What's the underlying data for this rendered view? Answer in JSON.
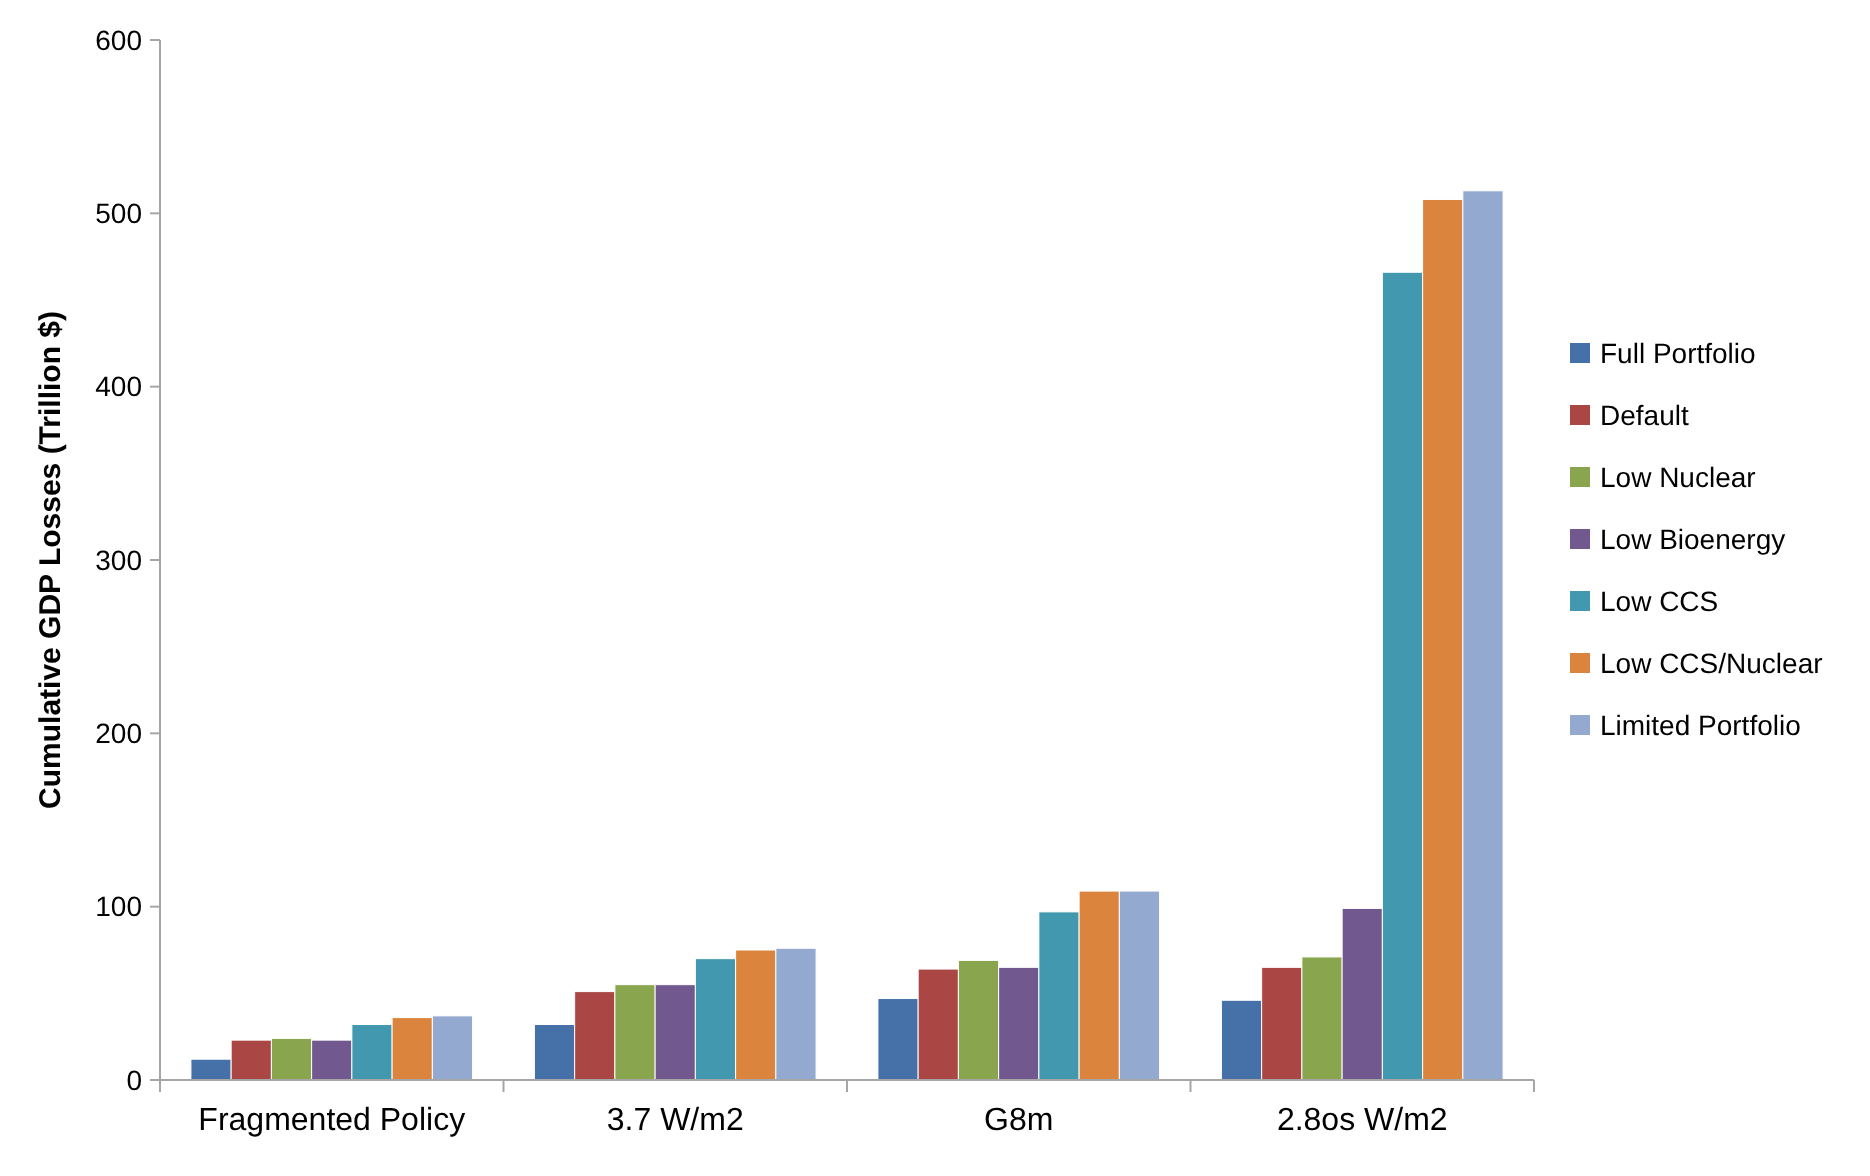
{
  "chart_data": {
    "type": "bar",
    "ylabel": "Cumulative GDP Losses (Trillion $)",
    "categories": [
      "Fragmented Policy",
      "3.7 W/m2",
      "G8m",
      "2.8os W/m2"
    ],
    "series": [
      {
        "name": "Full Portfolio",
        "color": "#4571a8",
        "values": [
          12,
          32,
          47,
          46
        ]
      },
      {
        "name": "Default",
        "color": "#aa4644",
        "values": [
          23,
          51,
          64,
          65
        ]
      },
      {
        "name": "Low Nuclear",
        "color": "#89a54e",
        "values": [
          24,
          55,
          69,
          71
        ]
      },
      {
        "name": "Low Bioenergy",
        "color": "#71588f",
        "values": [
          23,
          55,
          65,
          99
        ]
      },
      {
        "name": "Low CCS",
        "color": "#4198af",
        "values": [
          32,
          70,
          97,
          466
        ]
      },
      {
        "name": "Low CCS/Nuclear",
        "color": "#db843d",
        "values": [
          36,
          75,
          109,
          508
        ]
      },
      {
        "name": "Limited Portfolio",
        "color": "#93a9cf",
        "values": [
          37,
          76,
          109,
          513
        ]
      }
    ],
    "ylim": [
      0,
      600
    ],
    "yticks": [
      0,
      100,
      200,
      300,
      400,
      500,
      600
    ],
    "legend": "right"
  }
}
